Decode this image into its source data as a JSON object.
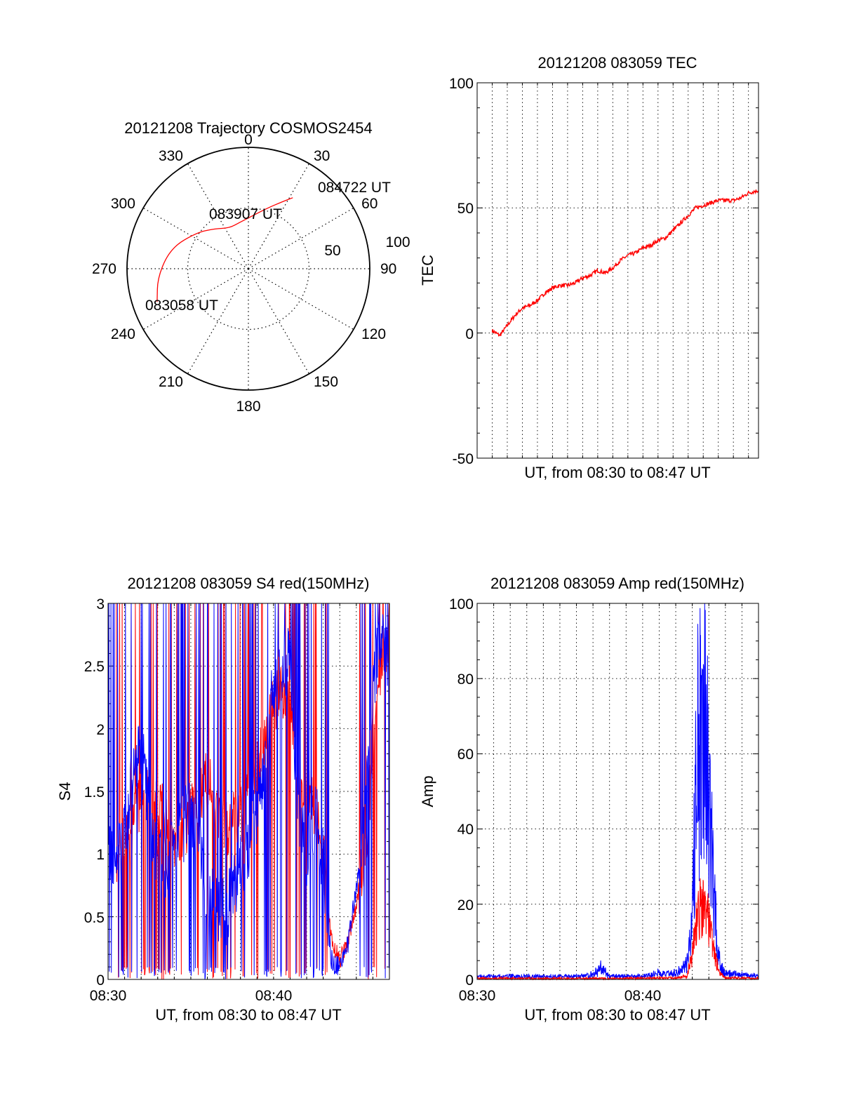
{
  "charts": {
    "trajectory": {
      "title": "20121208 Trajectory COSMOS2454",
      "azimuth_labels": [
        "0",
        "30",
        "60",
        "90",
        "120",
        "150",
        "180",
        "210",
        "240",
        "270",
        "300",
        "330"
      ],
      "radius_labels": [
        "50",
        "100"
      ],
      "annotations": [
        "084722 UT",
        "083907 UT",
        "083058 UT"
      ]
    },
    "tec": {
      "title": "20121208 083059 TEC",
      "xlabel": "UT, from 08:30 to 08:47 UT",
      "ylabel": "TEC",
      "y_ticks": [
        "100",
        "50",
        "0",
        "-50"
      ]
    },
    "s4": {
      "title": "20121208 083059 S4 red(150MHz)",
      "xlabel": "UT, from 08:30 to 08:47 UT",
      "ylabel": "S4",
      "y_ticks": [
        "3",
        "2.5",
        "2",
        "1.5",
        "1",
        "0.5",
        "0"
      ],
      "x_ticks": [
        "08:30",
        "08:40"
      ]
    },
    "amp": {
      "title": "20121208 083059 Amp red(150MHz)",
      "xlabel": "UT, from 08:30 to 08:47 UT",
      "ylabel": "Amp",
      "y_ticks": [
        "100",
        "80",
        "60",
        "40",
        "20",
        "0"
      ],
      "x_ticks": [
        "08:30",
        "08:40"
      ]
    }
  },
  "colors": {
    "red": "#ff0000",
    "blue": "#0000ff",
    "axis": "#000000"
  },
  "chart_data": [
    {
      "type": "scatter",
      "title": "20121208 Trajectory COSMOS2454",
      "projection": "polar",
      "theta_direction": "clockwise",
      "theta_zero": "top",
      "rlim": [
        0,
        100
      ],
      "series": [
        {
          "color": "#ff0000",
          "points": [
            [
              250,
              80
            ],
            [
              265,
              75
            ],
            [
              285,
              66
            ],
            [
              305,
              52
            ],
            [
              320,
              43
            ],
            [
              335,
              37
            ],
            [
              350,
              39
            ],
            [
              5,
              44
            ],
            [
              17,
              52
            ],
            [
              27,
              62
            ],
            [
              32,
              69
            ]
          ]
        }
      ],
      "annotations": [
        {
          "text": "084722 UT",
          "theta": 32,
          "r": 69
        },
        {
          "text": "083907 UT",
          "theta": 320,
          "r": 43
        },
        {
          "text": "083058 UT",
          "theta": 250,
          "r": 80
        }
      ]
    },
    {
      "type": "line",
      "title": "20121208 083059 TEC",
      "xlabel": "UT, from 08:30 to 08:47 UT",
      "ylabel": "TEC",
      "xlim": [
        "08:29:00",
        "08:47:40"
      ],
      "ylim": [
        -50,
        100
      ],
      "grid": true,
      "series": [
        {
          "color": "#ff0000",
          "x": [
            "08:30:00",
            "08:30:30",
            "08:31:00",
            "08:31:30",
            "08:32:00",
            "08:32:30",
            "08:33:00",
            "08:33:30",
            "08:34:00",
            "08:34:30",
            "08:35:00",
            "08:35:30",
            "08:36:00",
            "08:36:30",
            "08:37:00",
            "08:37:30",
            "08:38:00",
            "08:38:30",
            "08:39:00",
            "08:39:30",
            "08:40:00",
            "08:40:30",
            "08:41:00",
            "08:41:30",
            "08:42:00",
            "08:42:30",
            "08:43:00",
            "08:43:30",
            "08:44:00",
            "08:44:30",
            "08:45:00",
            "08:45:30",
            "08:46:00",
            "08:46:30",
            "08:47:00",
            "08:47:40"
          ],
          "y": [
            1,
            -1,
            3,
            7,
            10,
            11,
            13,
            16,
            18,
            19,
            19,
            20,
            22,
            23,
            25,
            24,
            26,
            29,
            31,
            32,
            34,
            35,
            37,
            38,
            41,
            44,
            47,
            50,
            51,
            52,
            53,
            53,
            53,
            54,
            56,
            57
          ]
        }
      ]
    },
    {
      "type": "line",
      "title": "20121208 083059 S4 red(150MHz)",
      "xlabel": "UT, from 08:30 to 08:47 UT",
      "ylabel": "S4",
      "xlim": [
        "08:30:00",
        "08:47:00"
      ],
      "ylim": [
        0,
        3
      ],
      "grid": true,
      "series": [
        {
          "color": "#ff0000",
          "x": [
            "08:30:30",
            "08:31:00",
            "08:31:30",
            "08:32:00",
            "08:33:00",
            "08:34:00",
            "08:35:00",
            "08:36:00",
            "08:37:00",
            "08:38:00",
            "08:39:00",
            "08:40:00",
            "08:41:00",
            "08:41:30",
            "08:42:00",
            "08:42:30",
            "08:43:00",
            "08:43:30",
            "08:44:00",
            "08:44:30",
            "08:45:00",
            "08:45:30",
            "08:46:00",
            "08:46:30",
            "08:47:00"
          ],
          "y": [
            1.0,
            1.1,
            1.2,
            1.5,
            1.4,
            1.1,
            1.3,
            1.6,
            1.2,
            1.3,
            1.7,
            2.2,
            2.3,
            1.6,
            1.5,
            1.4,
            1.0,
            0.3,
            0.15,
            0.3,
            0.6,
            1.0,
            1.8,
            2.5,
            2.8
          ]
        },
        {
          "color": "#0000ff",
          "x": [
            "08:30:00",
            "08:30:30",
            "08:31:00",
            "08:31:30",
            "08:32:00",
            "08:33:00",
            "08:34:00",
            "08:35:00",
            "08:36:00",
            "08:37:00",
            "08:38:00",
            "08:39:00",
            "08:40:00",
            "08:41:00",
            "08:41:30",
            "08:42:00",
            "08:42:30",
            "08:43:00",
            "08:43:30",
            "08:44:00",
            "08:44:30",
            "08:45:00",
            "08:45:30",
            "08:46:00",
            "08:46:30",
            "08:47:00"
          ],
          "y": [
            1.05,
            0.95,
            1.1,
            1.6,
            1.8,
            0.9,
            1.0,
            1.4,
            0.7,
            0.5,
            0.9,
            1.3,
            2.3,
            2.6,
            1.3,
            1.0,
            1.4,
            0.9,
            0.15,
            0.1,
            0.3,
            0.7,
            1.3,
            2.4,
            2.7,
            2.5
          ]
        }
      ]
    },
    {
      "type": "line",
      "title": "20121208 083059 Amp red(150MHz)",
      "xlabel": "UT, from 08:30 to 08:47 UT",
      "ylabel": "Amp",
      "xlim": [
        "08:30:00",
        "08:47:00"
      ],
      "ylim": [
        0,
        100
      ],
      "grid": true,
      "series": [
        {
          "color": "#ff0000",
          "x": [
            "08:30:00",
            "08:34:00",
            "08:38:00",
            "08:42:00",
            "08:42:40",
            "08:43:00",
            "08:43:15",
            "08:43:30",
            "08:43:45",
            "08:44:00",
            "08:44:20",
            "08:44:40",
            "08:45:00",
            "08:47:00"
          ],
          "y": [
            0.3,
            0.3,
            0.3,
            0.5,
            1,
            8,
            18,
            24,
            22,
            18,
            8,
            2,
            0.5,
            0.3
          ]
        },
        {
          "color": "#0000ff",
          "x": [
            "08:30:00",
            "08:33:00",
            "08:36:00",
            "08:37:00",
            "08:37:30",
            "08:38:00",
            "08:40:00",
            "08:41:00",
            "08:42:00",
            "08:42:40",
            "08:43:00",
            "08:43:15",
            "08:43:30",
            "08:43:45",
            "08:44:00",
            "08:44:20",
            "08:44:40",
            "08:45:00",
            "08:47:00"
          ],
          "y": [
            1,
            1,
            1,
            1.5,
            4,
            1,
            1,
            2,
            2,
            5,
            20,
            70,
            93,
            85,
            60,
            25,
            5,
            2,
            1
          ]
        }
      ]
    }
  ]
}
